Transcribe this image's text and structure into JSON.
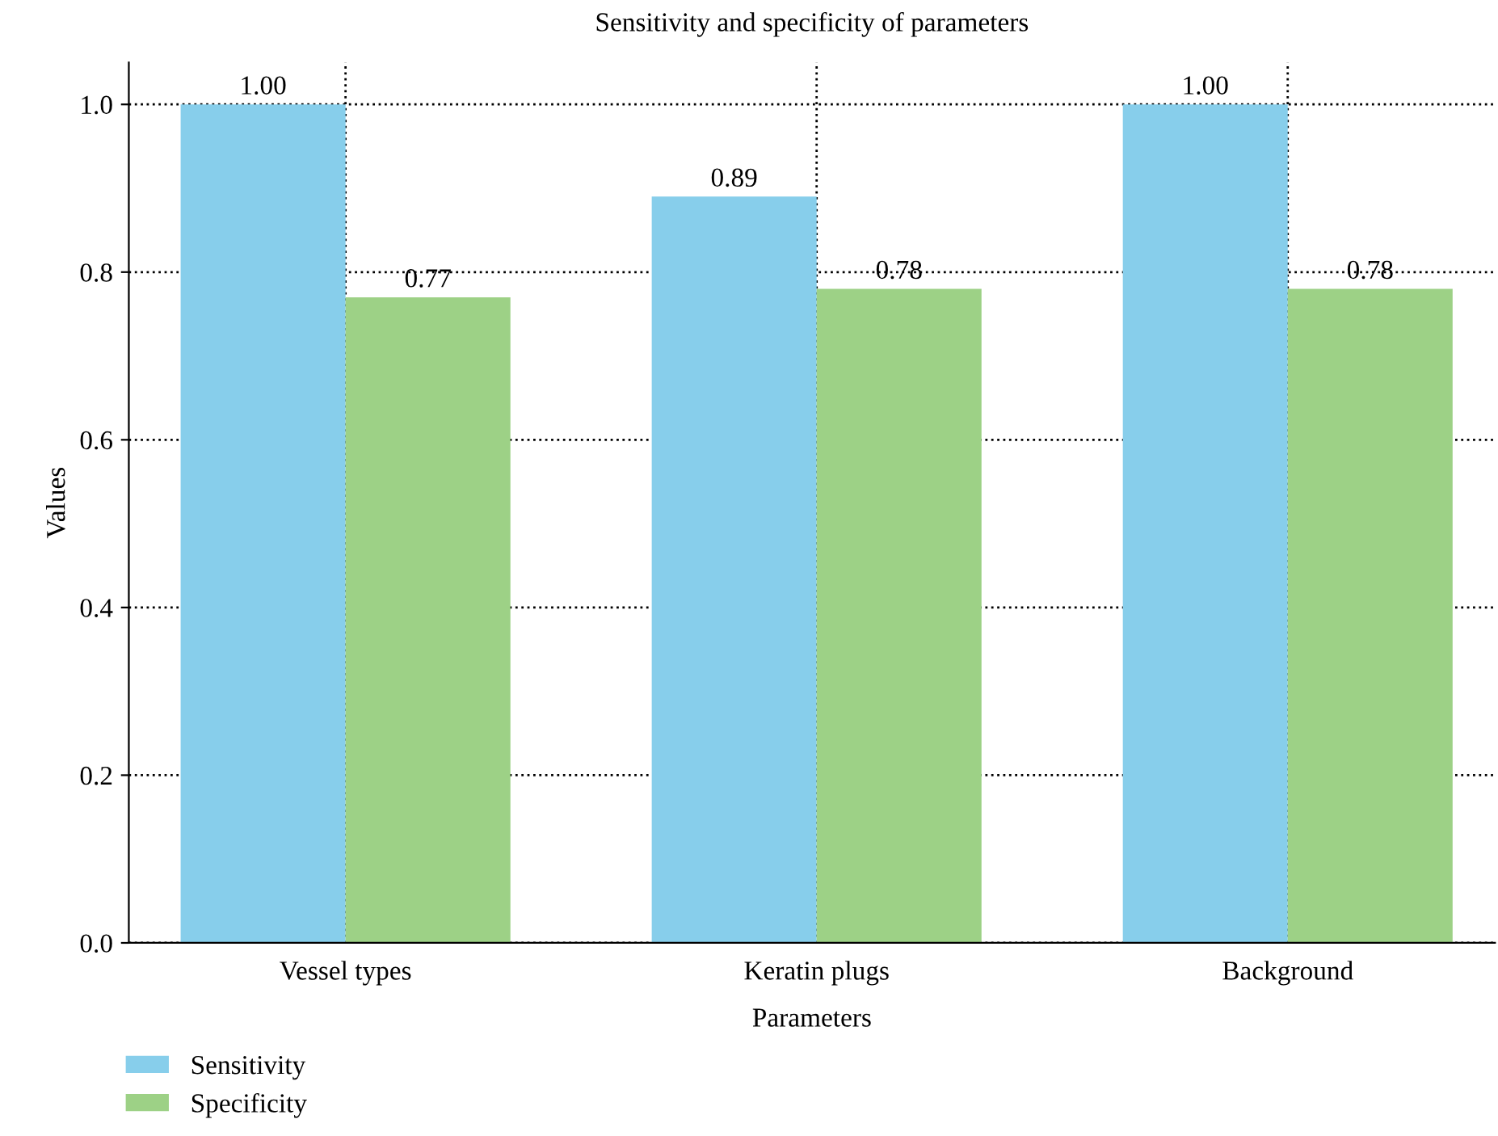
{
  "chart_data": {
    "type": "bar",
    "title": "Sensitivity and specificity of parameters",
    "xlabel": "Parameters",
    "ylabel": "Values",
    "categories": [
      "Vessel types",
      "Keratin plugs",
      "Background"
    ],
    "series": [
      {
        "name": "Sensitivity",
        "color": "#87ceeb",
        "values": [
          1.0,
          0.89,
          1.0
        ],
        "value_labels": [
          "1.00",
          "0.89",
          "1.00"
        ]
      },
      {
        "name": "Specificity",
        "color": "#9dd186",
        "values": [
          0.77,
          0.78,
          0.78
        ],
        "value_labels": [
          "0.77",
          "0.78",
          "0.78"
        ]
      }
    ],
    "ylim": [
      0,
      1.05
    ],
    "yticks": [
      {
        "value": 0,
        "label": "0.0"
      },
      0.2,
      0.4,
      0.6,
      0.8,
      {
        "value": 1,
        "label": "1.0"
      }
    ],
    "grid": true,
    "line_style": "dotted",
    "legend": "bottom left"
  }
}
